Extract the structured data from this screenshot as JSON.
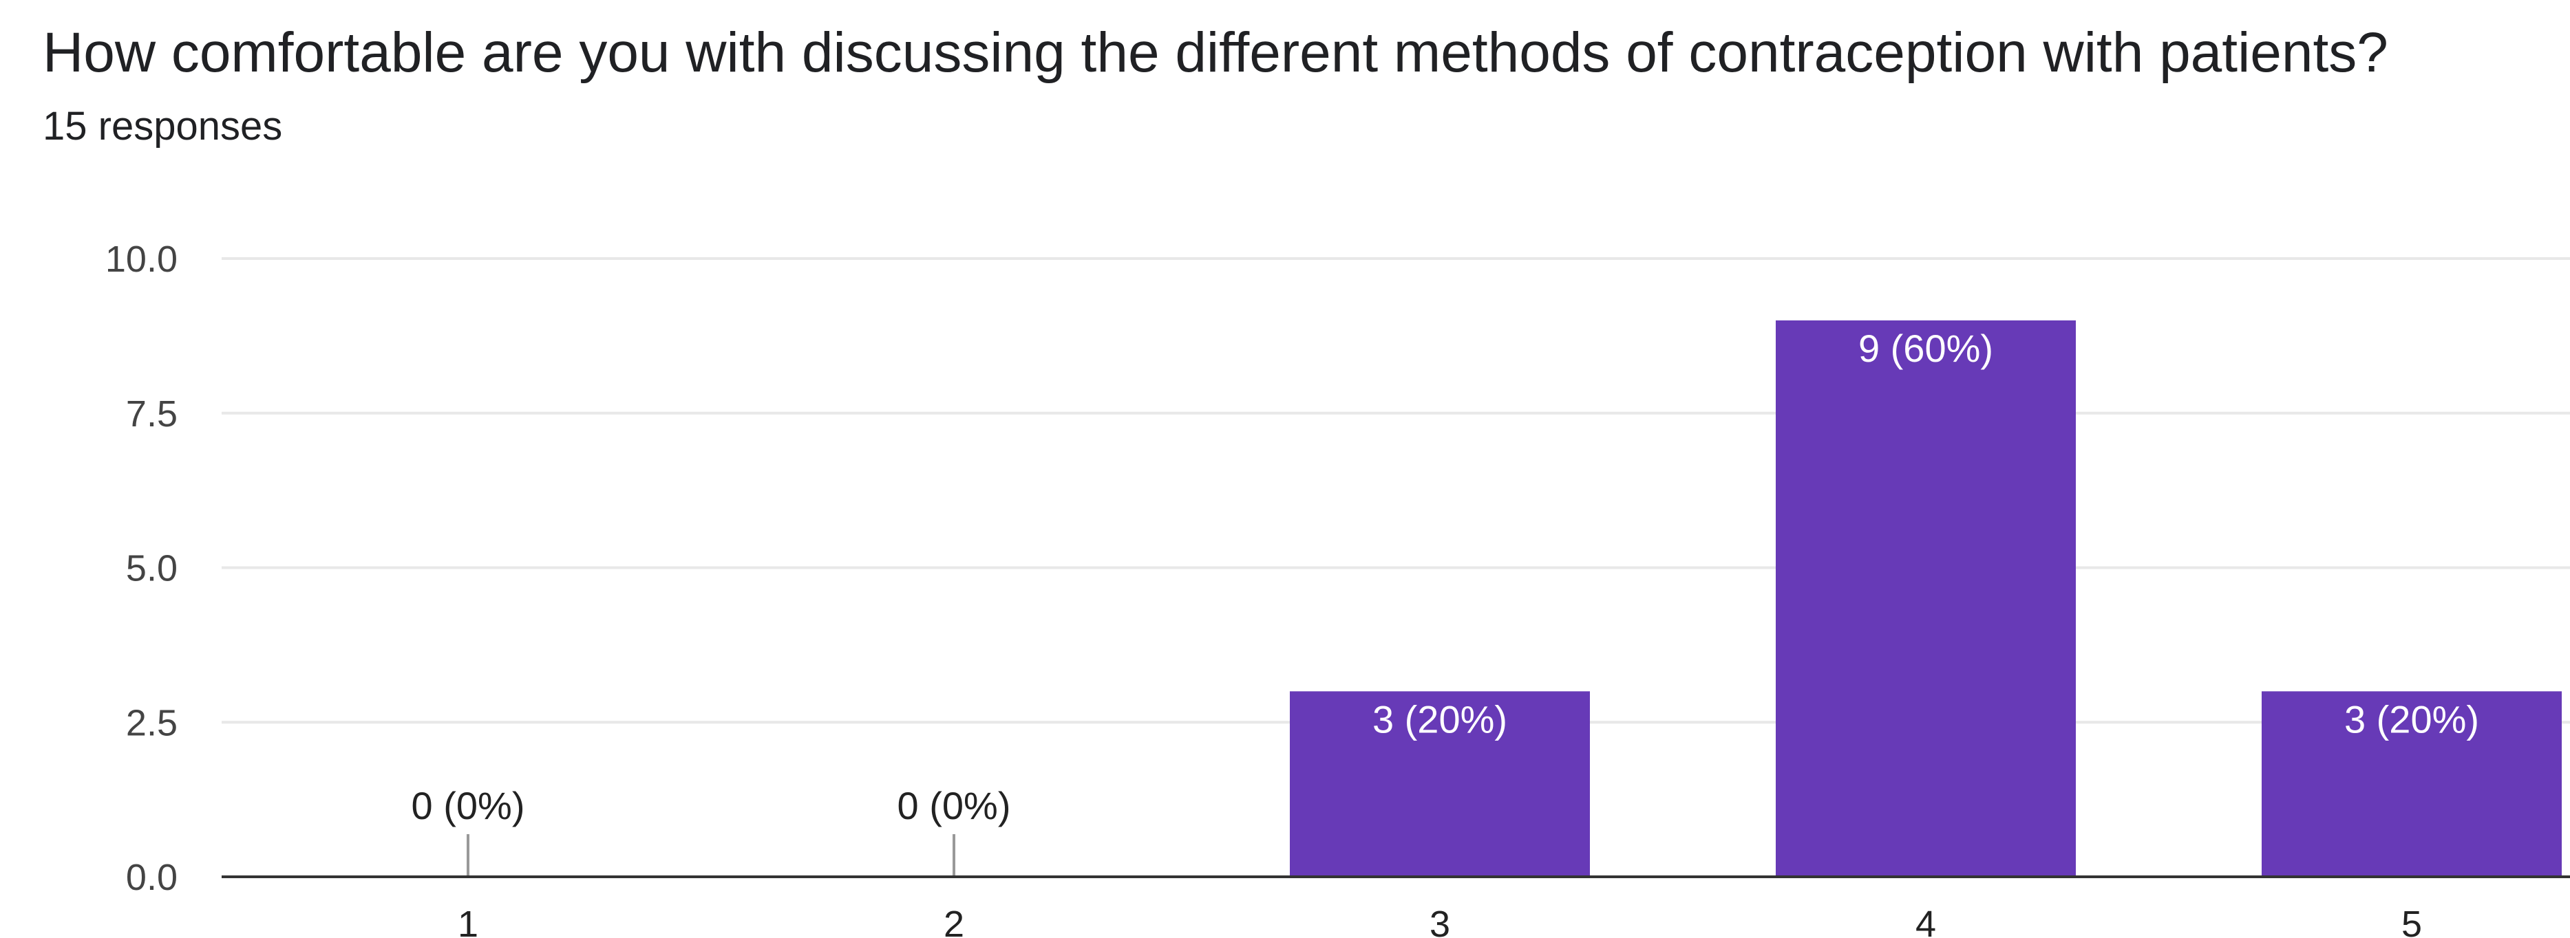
{
  "header": {
    "question": "How comfortable are you with discussing the different methods of contraception with patients?",
    "responses": "15 responses"
  },
  "colors": {
    "bar": "#673ab7",
    "grid": "#e8e8e8",
    "axis": "#333333"
  },
  "chart_data": {
    "type": "bar",
    "categories": [
      "1",
      "2",
      "3",
      "4",
      "5"
    ],
    "values": [
      0,
      0,
      3,
      9,
      3
    ],
    "data_labels": [
      "0 (0%)",
      "0 (0%)",
      "3 (20%)",
      "9 (60%)",
      "3 (20%)"
    ],
    "ylim": [
      0,
      10
    ],
    "yticks": [
      "0.0",
      "2.5",
      "5.0",
      "7.5",
      "10.0"
    ],
    "ytick_values": [
      0,
      2.5,
      5,
      7.5,
      10
    ],
    "grid": true,
    "xlabel": "",
    "ylabel": ""
  }
}
